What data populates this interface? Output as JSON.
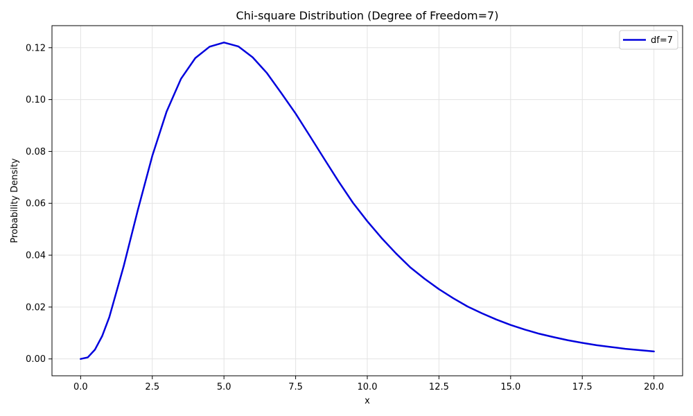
{
  "chart_data": {
    "type": "line",
    "title": "Chi-square Distribution (Degree of Freedom=7)",
    "xlabel": "x",
    "ylabel": "Probability Density",
    "xlim": [
      -1.0,
      21.0
    ],
    "ylim": [
      -0.0065,
      0.1285
    ],
    "xticks": [
      0.0,
      2.5,
      5.0,
      7.5,
      10.0,
      12.5,
      15.0,
      17.5,
      20.0
    ],
    "xtick_labels": [
      "0.0",
      "2.5",
      "5.0",
      "7.5",
      "10.0",
      "12.5",
      "15.0",
      "17.5",
      "20.0"
    ],
    "yticks": [
      0.0,
      0.02,
      0.04,
      0.06,
      0.08,
      0.1,
      0.12
    ],
    "ytick_labels": [
      "0.00",
      "0.02",
      "0.04",
      "0.06",
      "0.08",
      "0.10",
      "0.12"
    ],
    "grid": true,
    "legend_position": "top-right",
    "series": [
      {
        "name": "df=7",
        "color": "#0000dd",
        "x": [
          0.0,
          0.25,
          0.5,
          0.75,
          1.0,
          1.5,
          2.0,
          2.5,
          3.0,
          3.5,
          4.0,
          4.5,
          5.0,
          5.5,
          6.0,
          6.5,
          7.0,
          7.5,
          8.0,
          8.5,
          9.0,
          9.5,
          10.0,
          10.5,
          11.0,
          11.5,
          12.0,
          12.5,
          13.0,
          13.5,
          14.0,
          14.5,
          15.0,
          15.5,
          16.0,
          16.5,
          17.0,
          17.5,
          18.0,
          18.5,
          19.0,
          19.5,
          20.0
        ],
        "y": [
          0.0,
          0.0006,
          0.0036,
          0.0088,
          0.0161,
          0.0357,
          0.0576,
          0.0783,
          0.0954,
          0.108,
          0.116,
          0.1204,
          0.122,
          0.1205,
          0.1163,
          0.1102,
          0.1025,
          0.0946,
          0.0859,
          0.0771,
          0.0684,
          0.0602,
          0.0531,
          0.0466,
          0.0407,
          0.0353,
          0.0309,
          0.0269,
          0.0234,
          0.0202,
          0.0176,
          0.0152,
          0.0131,
          0.0113,
          0.0097,
          0.0084,
          0.0072,
          0.0062,
          0.0053,
          0.0046,
          0.0039,
          0.0034,
          0.0029
        ]
      }
    ]
  }
}
